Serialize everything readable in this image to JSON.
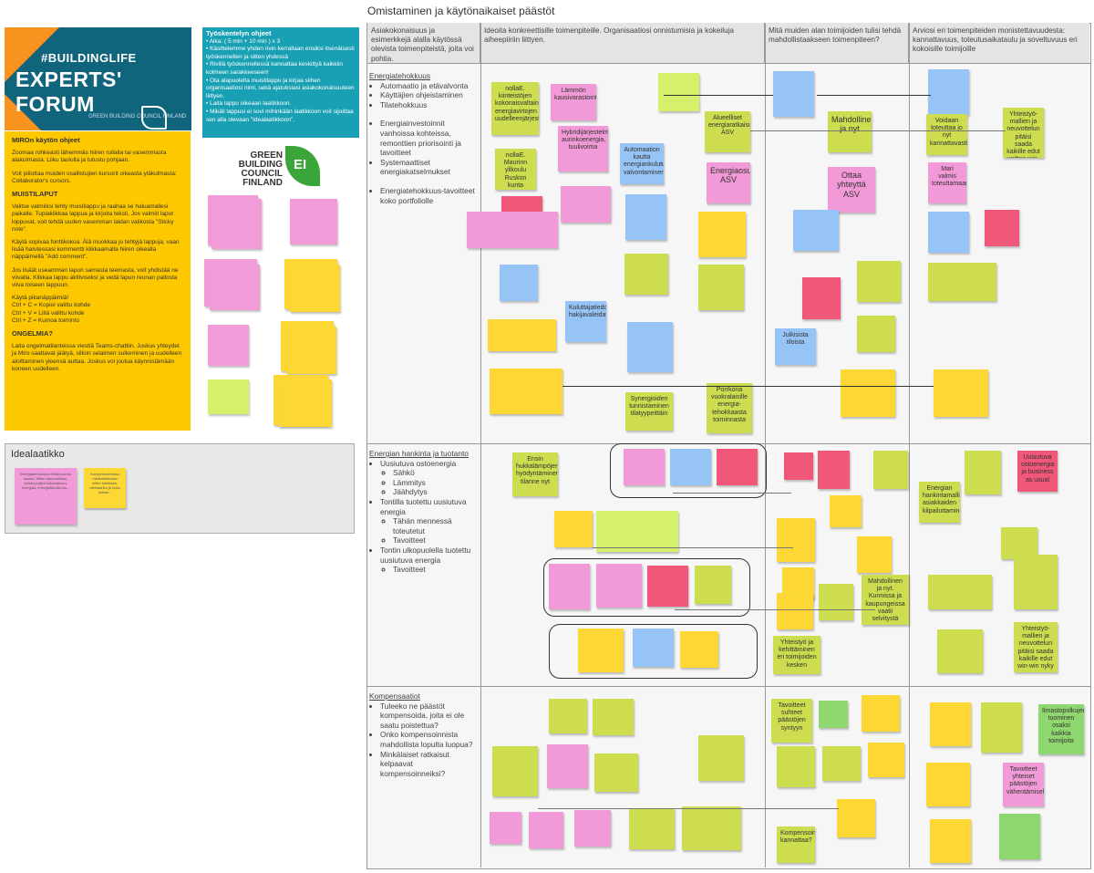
{
  "left": {
    "banner": {
      "hashtag": "#BUILDINGLIFE",
      "title": "EXPERTS' FORUM",
      "org_small": "GREEN BUILDING COUNCIL FINLAND"
    },
    "instructions": {
      "title": "Työskentelyn ohjeet",
      "lines": [
        "• Aika: ( 5 min + 10 min ) x 3",
        "• Käsittelemme yhden rivin kerrallaan ensiksi itsenäisesti työskennellen ja sitten yhdessä",
        "• Rivillä työskennellessä kannattaa keskittyä kaikkiin kolmeen sarakkeeseen!",
        "• Ota alapuolelta muistilappu ja kirjaa siihen organisaatiosi nimi, sekä ajatuksiasi asiakokonaisuuteen liittyen.",
        "• Laita lappu oikeaan laatikkoon.",
        "• Mikäli lappusi ei sovi mihinkään laatikkoon voit sijoittaa sen alla olevaan \"Idealaatikkoon\"."
      ]
    },
    "gbc_logo": {
      "text": "GREEN BUILDING COUNCIL FINLAND",
      "mark": "EI"
    },
    "miro": {
      "title": "MIROn käytön ohjeet",
      "p1": "Zoomaa rohkeasti lähemmäs hiiren rullalla tai vasemmasta alakulmasta. Liiku taululla ja tutustu pohjaan.",
      "p2": "Voit piilottaa muiden osallistujien kursorit oikeasta yläkulmasta: Collaborator's cursors.",
      "h2": "MUISTILAPUT",
      "p3": "Valitse valmiiksi tehty muistilappu ja raahaa se haluamallesi paikalle. Tuplaklikkaa lappua ja kirjoita teksti. Jos valmiit laput loppuvat, voit tehdä uuden vasemman laidan valikosta \"Sticky note\".",
      "p4": "Käytä sopivaa fonttikokoa. Älä muokkaa jo tehtyjä lappuja, vaan lisää halutessasi kommentti klikkaamalla hiiren oikealla näppäimellä \"Add comment\".",
      "p5": "Jos lisäät useamman lapun samasta teemasta, voit yhdistää ne viivalla. Klikkaa lappu aktiiviseksi ja vedä lapun reunan pallosta viiva toiseen lappuun.",
      "p6": "Käytä pikanäppäimiä!",
      "p7": "Ctrl + C = Kopioi valittu kohde",
      "p8": "Ctrl + V = Liitä valittu kohde",
      "p9": "Ctrl + Z = Kumoa toiminto",
      "h3": "ONGELMIA?",
      "p10": "Laita ongelmatilanteissa viestiä Teams-chattiin. Joskus yhteydet ja Miro saattavat jäätyä, silloin selaimen sulkeminen ja uudelleen aloittaminen yleensä auttaa. Joskus voi joutua käynnistämään koneen uudelleen."
    },
    "idea": {
      "title": "Idealaatikko",
      "note1": "Energiatehokkuus riittää kuinka kauas? Miten rakennetaan, kuinka paljon kokonaisuus energiaa, energiatehokkuus...",
      "note2": "Kompensoinnissa mielenkiintoista miten toimitaan, ostetaanko ja kuka hoitaa..."
    }
  },
  "board": {
    "title": "Omistaminen ja käytönaikaiset päästöt",
    "columns": [
      "Asiakokonaisuus ja esimerkkejä alalla käytössä olevista toimenpiteistä, joita voi pohtia.",
      "Ideoita konkreettisille toimenpiteille. Organisaatiosi onnistumisia ja kokeiluja aiheepiiriin liittyen.",
      "Mitä muiden alan toimijoiden tulisi tehdä mahdollistaakseen toimenpiteen?",
      "Arviosi eri toimenpiteiden monistettavuudesta: kannattavuus, toteutusaikataulu ja soveltuvuus eri kokoisille toimijoille"
    ],
    "rows": [
      {
        "title": "Energiatehokkuus",
        "items": [
          "Automaatio ja etävalvonta",
          "Käyttäjien ohjeistaminen",
          "Tilatehokkuus",
          "Energiainvestoinnit vanhoissa kohteissa, remonttien priorisointi ja tavoitteet",
          "Systemaattiset energiakatselmukset",
          "Energiatehokkuus-tavoitteet koko portfoliolle"
        ]
      },
      {
        "title": "Energian hankinta ja tuotanto",
        "items": [
          "Uusiutuva ostoenergia"
        ],
        "sub1": [
          "Sähkö",
          "Lämmitys",
          "Jäähdytys"
        ],
        "items2": [
          "Tontilla tuotettu uusiutuva energia"
        ],
        "sub2": [
          "Tähän mennessä toteutetut",
          "Tavoitteet"
        ],
        "items3": [
          "Tontin ulkopuolella tuotettu uusiutuva energia"
        ],
        "sub3": [
          "Tavoitteet"
        ]
      },
      {
        "title": "Kompensaatiot",
        "items": [
          "Tuleeko ne päästöt kompensoida, joita ei ole saatu poistettua?",
          "Onko kompensoinnista mahdollista lopulta luopua?",
          "Minkälaiset ratkaisut kelpaavat kompensoinneiksi?"
        ]
      }
    ],
    "notes": {
      "n1": "nollaE. kiinteistöjen kokonaisvaltainen energiavirtojen uudelleenjärjestely",
      "n2": "Lämmön kausivarastointi",
      "n3": "Hybridijärjestelmät aurinkoenergia, tuulivoima",
      "n4": "Automaation kautta energiankulutuksen valvontaminen",
      "n5": "nollaE. Maurinn ylikoulu Ruskon kunta",
      "n6": "Alueelliset energiaratkaisut ASV",
      "n7": "Energiaosuuskunnat ASV",
      "n8": "Mahdollinen ja nyt",
      "n9": "Ottaa yhteyttä ASV",
      "n10": "Voidaan toteuttaa jo nyt kannattavasti",
      "n11": "Yhteistyö-mallien ja neuvottelun pitäisi saada kaikille edut voittaa win-win nyky",
      "n12": "Mari valmis toteuttamaan",
      "n13": "Synergioiden tunnistaminen tilatyypeittäin",
      "n14": "Porrkona vuokralaisille energia-tehokkaasta toiminnasta",
      "n15": "Julkisista tiloista",
      "n16": "Kuluttajatiedon hakijavaleidataminen",
      "n17": "Uusiutuva ostoenergia ja business as usual",
      "n18": "Energian hankintamallin asiakkaiden kilpailuttaminen",
      "n19": "Mahdollinen ja nyt. Kunnissa ja kaupungeissa vaatii selvitystä",
      "n20": "Yhteistyö ja kehittäminen eri toimijoiden kesken",
      "n21": "Yhteistyö-mallien ja neuvottelun pitäisi saada kaikille edut win-win nyky",
      "n22": "Ensin hukkalämpöjen hyödyntäminen, tilanne nyt",
      "n23": "Tavoitteet suhteet päästöjen syntyyn",
      "n24": "Ilmastopolkujen tuominen osaksi kaikkia toimijoita",
      "n25": "Tavoitteet yhteiset päästöjen vähentämiselle",
      "n26": "Kompensointi kannattaa?",
      "n27": "Ratkaisut kompensaation lähteiksi"
    }
  }
}
